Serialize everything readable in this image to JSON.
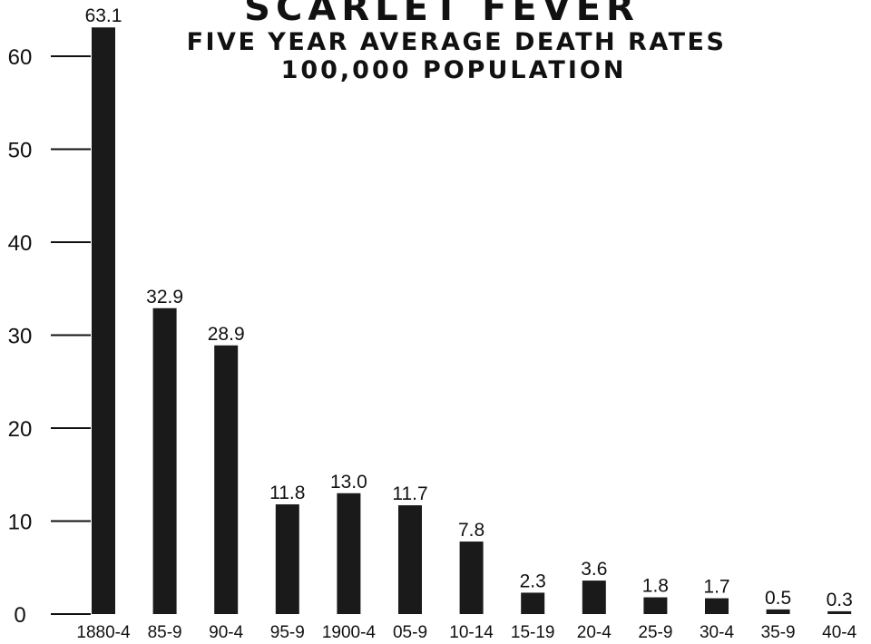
{
  "chart_data": {
    "type": "bar",
    "title": "SCARLET FEVER",
    "subtitle_line1": "FIVE YEAR AVERAGE DEATH RATES",
    "subtitle_line2": "100,000 POPULATION",
    "categories": [
      "1880-4",
      "85-9",
      "90-4",
      "95-9",
      "1900-4",
      "05-9",
      "10-14",
      "15-19",
      "20-4",
      "25-9",
      "30-4",
      "35-9",
      "40-4"
    ],
    "values": [
      63.1,
      32.9,
      28.9,
      11.8,
      13.0,
      11.7,
      7.8,
      2.3,
      3.6,
      1.8,
      1.7,
      0.5,
      0.3
    ],
    "data_labels": [
      "63.1",
      "32.9",
      "28.9",
      "11.8",
      "13.0",
      "11.7",
      "7.8",
      "2.3",
      "3.6",
      "1.8",
      "1.7",
      "0.5",
      "0.3"
    ],
    "y_ticks": [
      0,
      10,
      20,
      30,
      40,
      50,
      60
    ],
    "ylim": [
      0,
      63.1
    ],
    "bar_color": "#1a1a1a",
    "grid": false,
    "legend": "none"
  }
}
